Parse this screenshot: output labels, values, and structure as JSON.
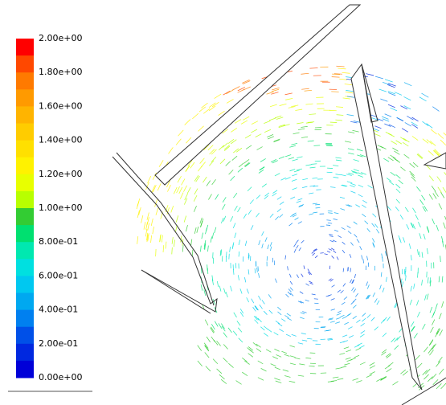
{
  "colorbar": {
    "labels": [
      "2.00e+00",
      "1.80e+00",
      "1.60e+00",
      "1.40e+00",
      "1.20e+00",
      "1.00e+00",
      "8.00e-01",
      "6.00e-01",
      "4.00e-01",
      "2.00e-01",
      "0.00e+00"
    ],
    "colors": [
      "#ff0000",
      "#ff4800",
      "#ff7a00",
      "#ff9a00",
      "#ffb400",
      "#ffcc00",
      "#ffe000",
      "#fff200",
      "#e8ff00",
      "#b8ff00",
      "#33cc33",
      "#00e070",
      "#00e8b0",
      "#00e0e0",
      "#00c8f0",
      "#00a8f0",
      "#0080f0",
      "#0050e8",
      "#0028e0",
      "#0000d8"
    ]
  }
}
